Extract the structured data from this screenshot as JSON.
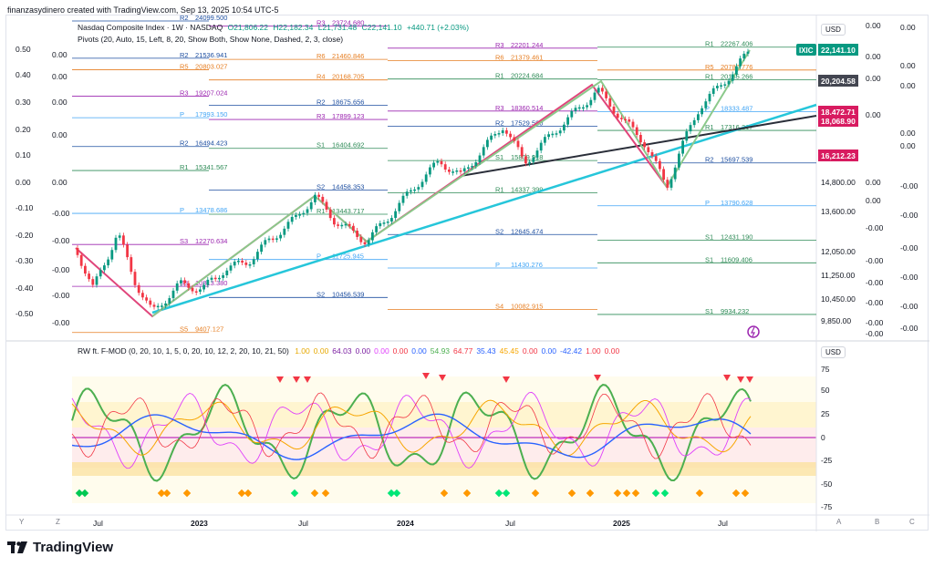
{
  "header": {
    "text": "finanzasydinero created with TradingView.com, Sep 13, 2025 10:54 UTC-5"
  },
  "main_legend": {
    "title": "Nasdaq Composite Index · 1W · NASDAQ",
    "open": "O21,806.22",
    "high": "H22,182.34",
    "low": "L21,731.48",
    "close": "C22,141.10",
    "change": "+440.71 (+2.03%)",
    "pivots": "Pivots (20, Auto, 15, Left, 8, 20, Show Both, Show None, Dashed, 2, 3, close)"
  },
  "sub_legend": {
    "name": "RW ft. F-MOD (0, 20, 10, 1, 5, 0, 20, 10, 12, 2, 20, 10, 21, 50)",
    "values": [
      {
        "v": "1.00",
        "c": "#e6a800"
      },
      {
        "v": "0.00",
        "c": "#e6a800"
      },
      {
        "v": "64.03",
        "c": "#7b1fa2"
      },
      {
        "v": "0.00",
        "c": "#7b1fa2"
      },
      {
        "v": "0.00",
        "c": "#e040fb"
      },
      {
        "v": "0.00",
        "c": "#f23645"
      },
      {
        "v": "0.00",
        "c": "#2962ff"
      },
      {
        "v": "54.93",
        "c": "#4caf50"
      },
      {
        "v": "64.77",
        "c": "#f23645"
      },
      {
        "v": "35.43",
        "c": "#2962ff"
      },
      {
        "v": "45.45",
        "c": "#f7a600"
      },
      {
        "v": "0.00",
        "c": "#f23645"
      },
      {
        "v": "0.00",
        "c": "#2962ff"
      },
      {
        "v": "-42.42",
        "c": "#2962ff"
      },
      {
        "v": "1.00",
        "c": "#f23645"
      },
      {
        "v": "0.00",
        "c": "#f23645"
      }
    ]
  },
  "currency": "USD",
  "price_tags": [
    {
      "label": "IXIC",
      "value": "22,141.10",
      "color": "#089981"
    },
    {
      "value": "20,204.58",
      "color": "#434651"
    },
    {
      "value": "18,472.71",
      "color": "#d81b60"
    },
    {
      "value": "18,068.90",
      "color": "#d81b60"
    },
    {
      "value": "16,212.23",
      "color": "#d81b60"
    }
  ],
  "price_axis": [
    "14,800.00",
    "13,600.00",
    "12,050.00",
    "11,250.00",
    "10,450.00",
    "9,850.00"
  ],
  "osc_axis": [
    "75",
    "50",
    "25",
    "0",
    "-25",
    "-50",
    "-75"
  ],
  "left_axis": [
    "0.50",
    "0.40",
    "0.30",
    "0.20",
    "0.10",
    "0.00",
    "-0.10",
    "-0.20",
    "-0.30",
    "-0.40",
    "-0.50"
  ],
  "right_axis_a": [
    "0.00",
    "0.00",
    "0.00",
    "0.00",
    "0.00",
    "0.00",
    "-0.00",
    "-0.00",
    "-0.00",
    "-0.00",
    "-0.00",
    "-0.00"
  ],
  "right_axis_b": [
    "0.00",
    "0.00",
    "0.00",
    "0.00",
    "0.00",
    "-0.00",
    "-0.00",
    "-0.00",
    "-0.00",
    "-0.00",
    "-0.00"
  ],
  "time_axis": [
    "Jul",
    "2023",
    "Jul",
    "2024",
    "Jul",
    "2025",
    "Jul"
  ],
  "pivot_levels": [
    {
      "l": "R2",
      "v": "24099.500"
    },
    {
      "l": "R3",
      "v": "23724.680"
    },
    {
      "l": "R3",
      "v": "22201.244"
    },
    {
      "l": "R1",
      "v": "22267.406"
    },
    {
      "l": "R2",
      "v": "21536.941"
    },
    {
      "l": "R6",
      "v": "21460.846"
    },
    {
      "l": "R6",
      "v": "21379.461"
    },
    {
      "l": "R5",
      "v": "20780.776"
    },
    {
      "l": "R5",
      "v": "20803.027"
    },
    {
      "l": "R4",
      "v": "20168.705"
    },
    {
      "l": "R1",
      "v": "20224.684"
    },
    {
      "l": "R1",
      "v": "20185.266"
    },
    {
      "l": "R3",
      "v": "19207.024"
    },
    {
      "l": "R2",
      "v": "18675.656"
    },
    {
      "l": "R3",
      "v": "18360.514"
    },
    {
      "l": "P",
      "v": "18333.487"
    },
    {
      "l": "P",
      "v": "17993.150"
    },
    {
      "l": "R3",
      "v": "17899.123"
    },
    {
      "l": "R2",
      "v": "17529.580"
    },
    {
      "l": "R1",
      "v": "17316.217"
    },
    {
      "l": "R2",
      "v": "16494.423"
    },
    {
      "l": "S1",
      "v": "16404.692"
    },
    {
      "l": "S1",
      "v": "15809.918"
    },
    {
      "l": "R2",
      "v": "15697.539"
    },
    {
      "l": "R1",
      "v": "15341.567"
    },
    {
      "l": "S2",
      "v": "14458.353"
    },
    {
      "l": "R1",
      "v": "14337.399"
    },
    {
      "l": "P",
      "v": "13790.628"
    },
    {
      "l": "P",
      "v": "13478.686"
    },
    {
      "l": "R1",
      "v": "13443.717"
    },
    {
      "l": "S2",
      "v": "12645.474"
    },
    {
      "l": "S1",
      "v": "12431.190"
    },
    {
      "l": "S3",
      "v": "12270.634"
    },
    {
      "l": "P",
      "v": "11725.945"
    },
    {
      "l": "P",
      "v": "11430.276"
    },
    {
      "l": "S1",
      "v": "11609.406"
    },
    {
      "l": "S3",
      "v": "10813.380"
    },
    {
      "l": "S2",
      "v": "10456.539"
    },
    {
      "l": "S4",
      "v": "10082.915"
    },
    {
      "l": "S1",
      "v": "9934.232"
    },
    {
      "l": "S5",
      "v": "9407.127"
    }
  ],
  "bottom_controls": [
    "Y",
    "Z",
    "A",
    "B",
    "C"
  ],
  "footer": {
    "brand": "TradingView"
  }
}
